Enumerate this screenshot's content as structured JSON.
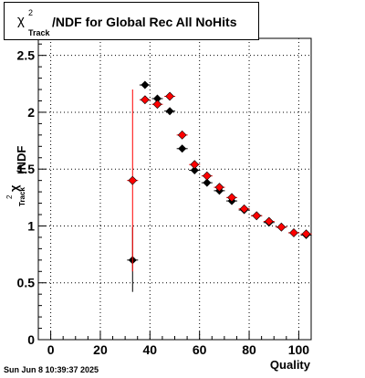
{
  "title": {
    "chi": "χ",
    "sup": "2",
    "sub": "Track",
    "text": "/NDF for Global Rec All NoHits"
  },
  "y_axis": {
    "chi": "χ",
    "sup": "2",
    "sub": "Track",
    "rest": "/NDF"
  },
  "x_axis": {
    "label": "Quality"
  },
  "timestamp": "Sun Jun  8 10:39:37 2025",
  "colors": {
    "series_black": "#000000",
    "series_red": "#ff0000",
    "grid": "#000000"
  },
  "chart_data": {
    "type": "scatter",
    "title": "χ2 Track /NDF for Global Rec All NoHits",
    "xlabel": "Quality",
    "ylabel": "χ2 Track /NDF",
    "xlim": [
      -5,
      105
    ],
    "ylim": [
      0,
      2.65
    ],
    "x_ticks": [
      "0",
      "20",
      "40",
      "60",
      "80",
      "100"
    ],
    "y_ticks": [
      "0",
      "0.5",
      "1",
      "1.5",
      "2",
      "2.5"
    ],
    "grid": true,
    "series": [
      {
        "color": "#000000",
        "points": [
          {
            "x": 33,
            "y": 0.7,
            "ylo": 0.42,
            "yhi": 0.99
          },
          {
            "x": 38,
            "y": 2.24
          },
          {
            "x": 43,
            "y": 2.12
          },
          {
            "x": 48,
            "y": 2.01
          },
          {
            "x": 53,
            "y": 1.68
          },
          {
            "x": 58,
            "y": 1.49
          },
          {
            "x": 63,
            "y": 1.38
          },
          {
            "x": 68,
            "y": 1.31
          },
          {
            "x": 73,
            "y": 1.22
          },
          {
            "x": 78,
            "y": 1.14
          },
          {
            "x": 83,
            "y": 1.09
          },
          {
            "x": 88,
            "y": 1.03
          },
          {
            "x": 93,
            "y": 0.99
          },
          {
            "x": 98,
            "y": 0.94
          },
          {
            "x": 103,
            "y": 0.92
          }
        ]
      },
      {
        "color": "#ff0000",
        "points": [
          {
            "x": 33,
            "y": 1.4,
            "ylo": 0.6,
            "yhi": 2.2
          },
          {
            "x": 38,
            "y": 2.11
          },
          {
            "x": 43,
            "y": 2.07
          },
          {
            "x": 48,
            "y": 2.14
          },
          {
            "x": 53,
            "y": 1.8
          },
          {
            "x": 58,
            "y": 1.54
          },
          {
            "x": 63,
            "y": 1.44
          },
          {
            "x": 68,
            "y": 1.34
          },
          {
            "x": 73,
            "y": 1.25
          },
          {
            "x": 78,
            "y": 1.15
          },
          {
            "x": 83,
            "y": 1.09
          },
          {
            "x": 88,
            "y": 1.04
          },
          {
            "x": 93,
            "y": 0.99
          },
          {
            "x": 98,
            "y": 0.94
          },
          {
            "x": 103,
            "y": 0.93
          }
        ]
      }
    ]
  }
}
